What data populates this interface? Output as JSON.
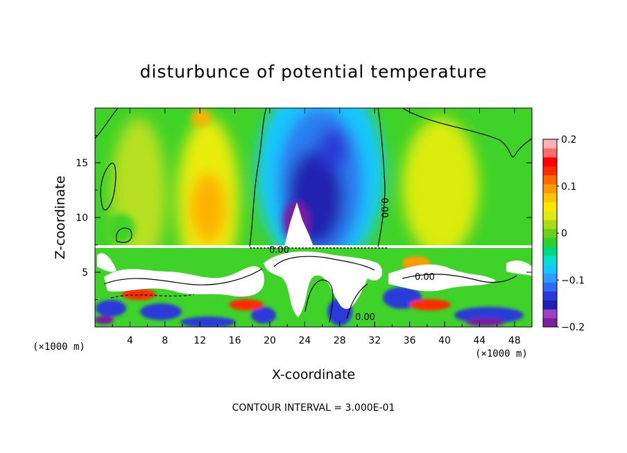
{
  "chart_data": {
    "type": "heatmap",
    "title": "disturbunce of potential temperature",
    "xlabel": "X-coordinate",
    "ylabel": "Z-coordinate",
    "x_unit": "(×1000 m)",
    "y_unit": "(×1000 m)",
    "xlim": [
      0,
      50
    ],
    "ylim": [
      0,
      20
    ],
    "x_ticks": [
      "4",
      "8",
      "12",
      "16",
      "20",
      "24",
      "28",
      "32",
      "36",
      "40",
      "44",
      "48"
    ],
    "y_ticks": [
      "5",
      "10",
      "15"
    ],
    "colorbar": {
      "range": [
        -0.2,
        0.2
      ],
      "labels": [
        "0.2",
        "0.1",
        "0",
        "−0.1",
        "−0.2"
      ],
      "colors": [
        "#7a1fa2",
        "#a040c0",
        "#2020b0",
        "#2a3ad8",
        "#2f6cf0",
        "#2a9bff",
        "#12c8ff",
        "#00e0d0",
        "#00d880",
        "#2fd22a",
        "#6cd018",
        "#a8dc18",
        "#dcec10",
        "#ffe800",
        "#ffc400",
        "#ff9a00",
        "#ff6a00",
        "#ff2a00",
        "#ff0000",
        "#ff6a6a",
        "#ffb0b0"
      ]
    },
    "contour_labels": [
      "0.00",
      "0.00",
      "0.00",
      "0.00"
    ],
    "annotation": "CONTOUR INTERVAL = 3.000E-01"
  }
}
